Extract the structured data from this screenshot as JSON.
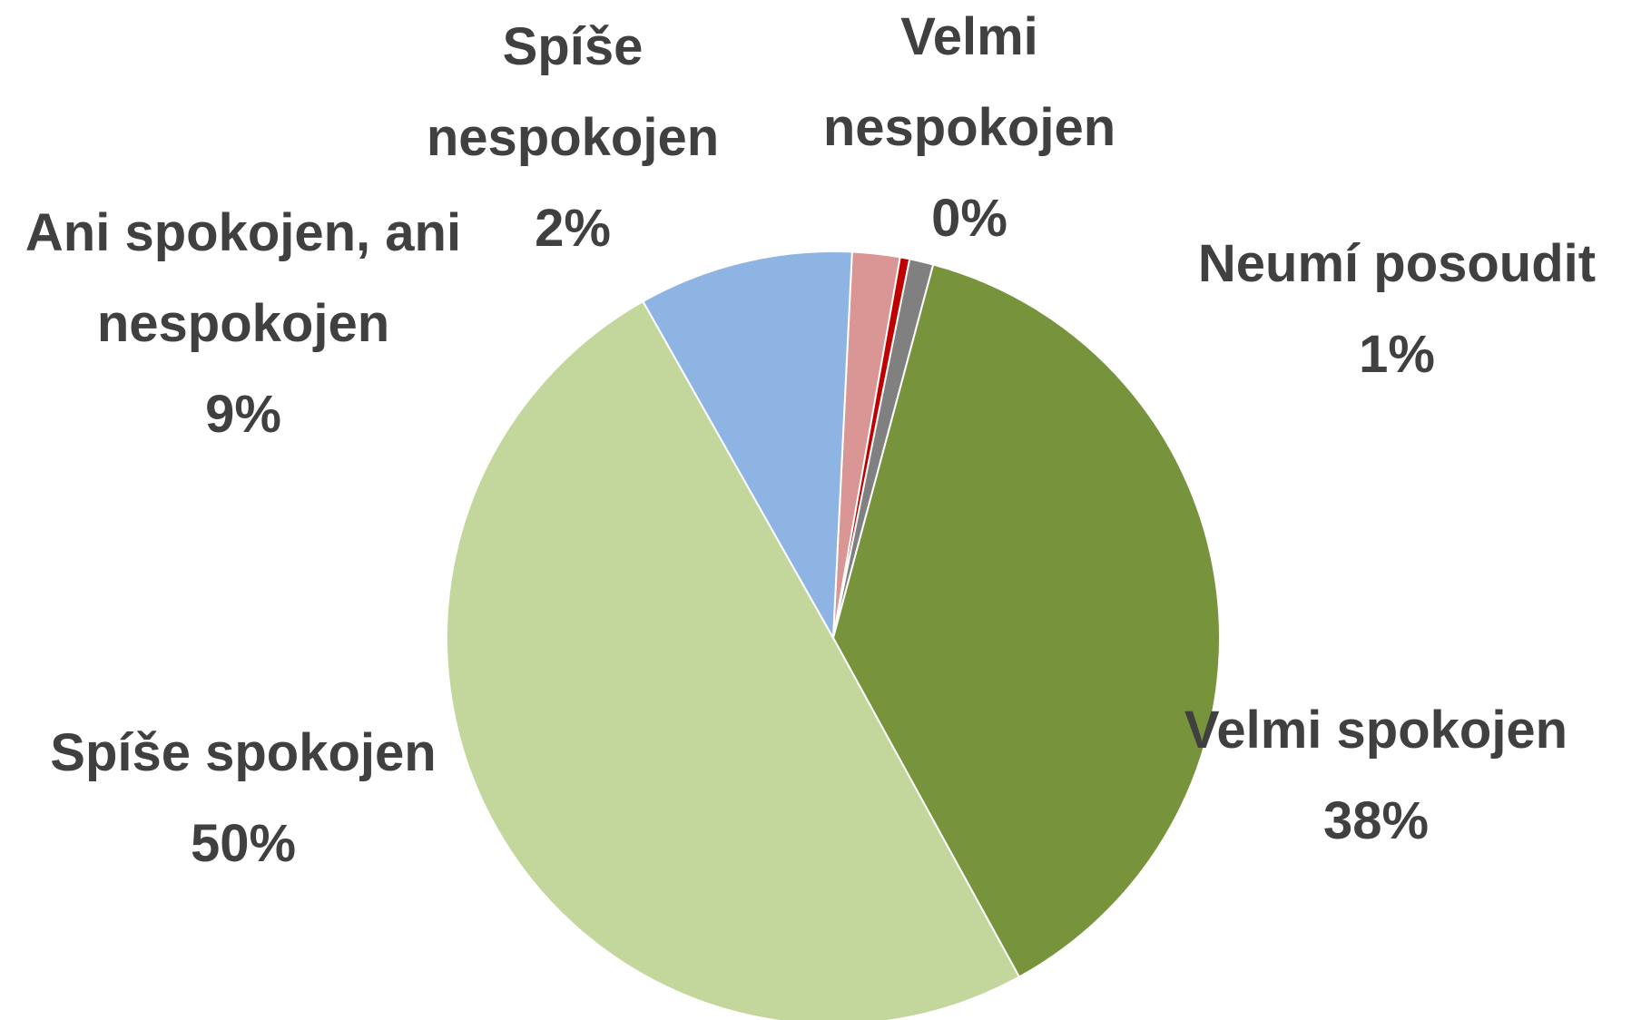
{
  "chart_data": {
    "type": "pie",
    "categories": [
      "Spíše nespokojen",
      "Velmi nespokojen",
      "Neumí posoudit",
      "Velmi spokojen",
      "Spíše spokojen",
      "Ani spokojen, ani nespokojen"
    ],
    "values": [
      2,
      0.4,
      1,
      38,
      50,
      9
    ],
    "value_labels": [
      "2%",
      "0%",
      "1%",
      "38%",
      "50%",
      "9%"
    ],
    "colors": [
      "#d99694",
      "#c00000",
      "#808080",
      "#77933c",
      "#c3d69b",
      "#8eb4e3"
    ]
  }
}
